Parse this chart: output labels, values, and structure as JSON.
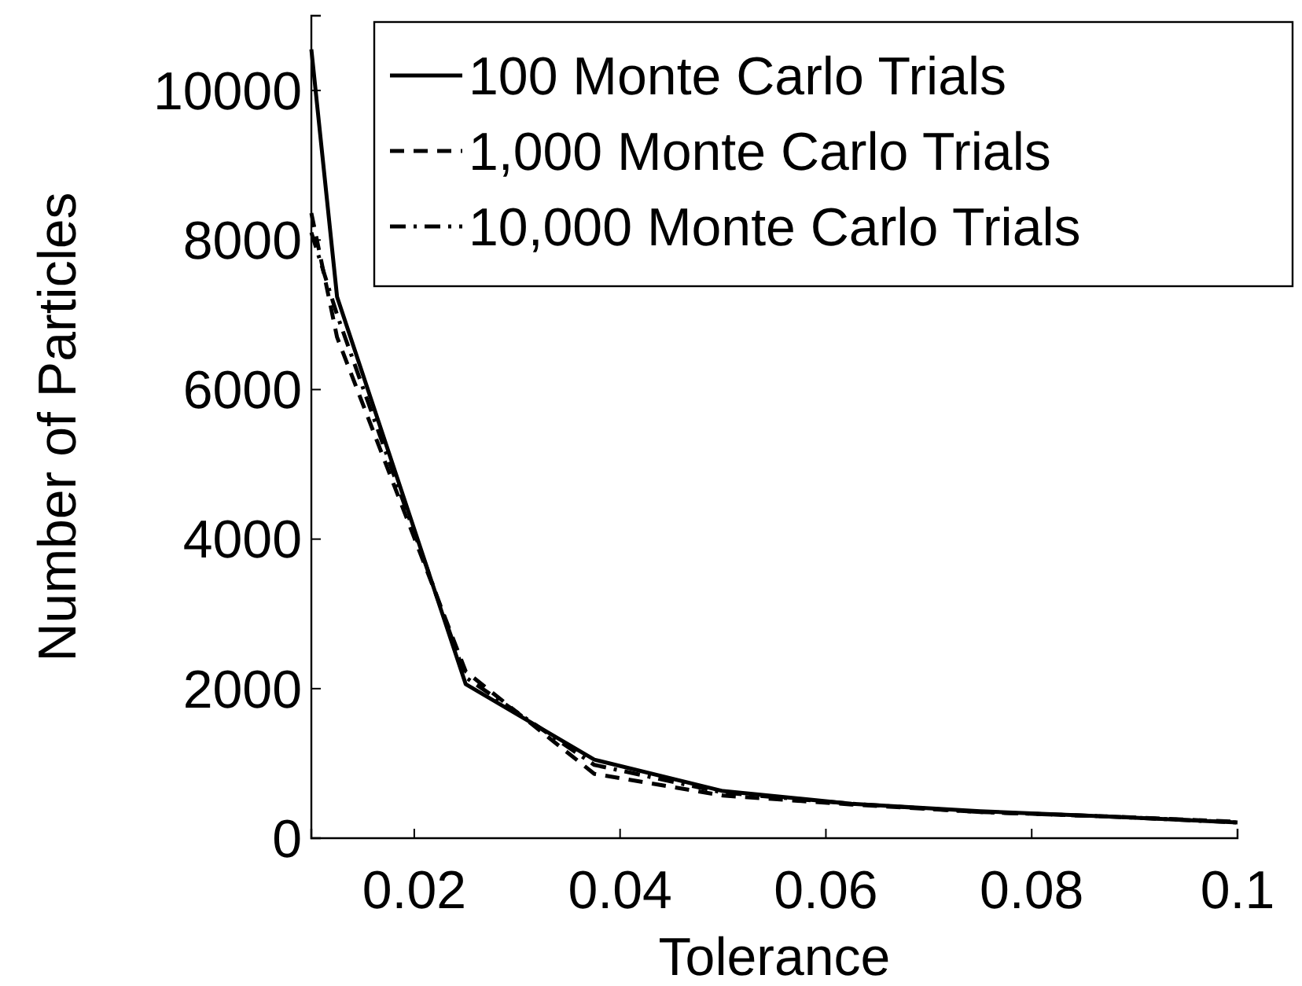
{
  "chart_data": {
    "type": "line",
    "xlabel": "Tolerance",
    "ylabel": "Number of Particles",
    "x": [
      0.01,
      0.0125,
      0.025,
      0.0375,
      0.05,
      0.0625,
      0.075,
      0.0875,
      0.1
    ],
    "xlim": [
      0.01,
      0.1
    ],
    "xticks": [
      0.02,
      0.04,
      0.06,
      0.08,
      0.1
    ],
    "ylim": [
      0,
      11000
    ],
    "yticks": [
      0,
      2000,
      4000,
      6000,
      8000,
      10000
    ],
    "legend": "top right",
    "grid": false,
    "marker": "none",
    "series": [
      {
        "name": "100 Monte Carlo Trials",
        "color": "#000000",
        "line_style": "solid",
        "values": [
          10550,
          7240,
          2060,
          1050,
          630,
          460,
          360,
          290,
          210
        ]
      },
      {
        "name": "1,000 Monte Carlo Trials",
        "color": "#000000",
        "line_style": "dashed",
        "values": [
          8360,
          6700,
          2230,
          860,
          570,
          450,
          350,
          290,
          220
        ]
      },
      {
        "name": "10,000 Monte Carlo Trials",
        "color": "#000000",
        "line_style": "dashdot",
        "values": [
          8100,
          7000,
          2150,
          980,
          610,
          460,
          350,
          290,
          210
        ]
      }
    ]
  }
}
